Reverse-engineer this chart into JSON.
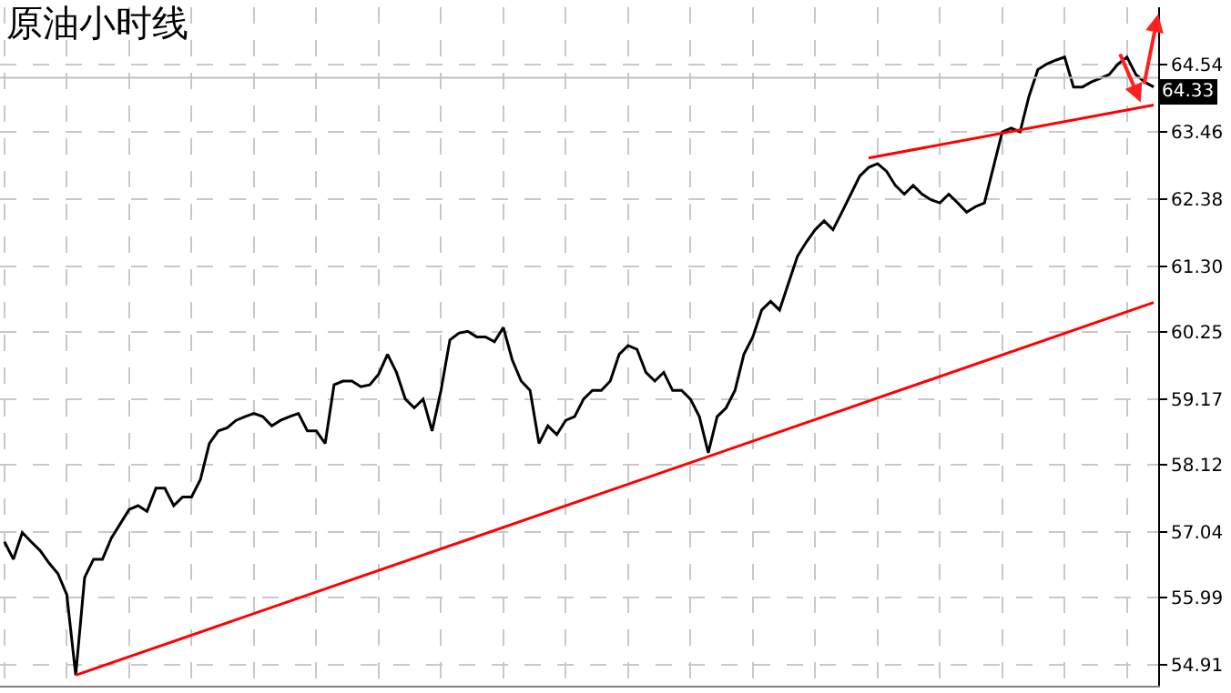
{
  "chart_data": {
    "type": "line",
    "title": "原油小时线",
    "categories": [
      null,
      null,
      null,
      null,
      null,
      null,
      null,
      null,
      null,
      null,
      null,
      null,
      null,
      null,
      null,
      null,
      null,
      null,
      null,
      null,
      null,
      null,
      null,
      null,
      null,
      null,
      null,
      null,
      null,
      null,
      null,
      null,
      null,
      null,
      null,
      null,
      null,
      null,
      null,
      null,
      null,
      null,
      null,
      null,
      null,
      null,
      null,
      null,
      null,
      null,
      null,
      null,
      null,
      null,
      null,
      null,
      null,
      null,
      null,
      null,
      null,
      null,
      null,
      null,
      null,
      null,
      null,
      null,
      null,
      null,
      null,
      null,
      null,
      null,
      null,
      null,
      null,
      null,
      null,
      null,
      null,
      null,
      null,
      null,
      null,
      null,
      null,
      null,
      null,
      null,
      null,
      null,
      null,
      null,
      null,
      null,
      null,
      null,
      null,
      null,
      null,
      null,
      null,
      null,
      null,
      null,
      null,
      null,
      null,
      null,
      null,
      null,
      null,
      null,
      null,
      null,
      null,
      null,
      null,
      null,
      null,
      null,
      null,
      null,
      null,
      null,
      null,
      null,
      null,
      null
    ],
    "series": [
      {
        "color": "#000000",
        "values": [
          56.88,
          56.6,
          57.03,
          56.88,
          56.74,
          56.54,
          56.37,
          56.03,
          54.74,
          56.31,
          56.6,
          56.6,
          56.94,
          57.17,
          57.4,
          57.46,
          57.37,
          57.74,
          57.74,
          57.46,
          57.6,
          57.6,
          57.88,
          58.46,
          58.66,
          58.71,
          58.83,
          58.89,
          58.94,
          58.89,
          58.74,
          58.83,
          58.89,
          58.94,
          58.66,
          58.66,
          58.46,
          59.4,
          59.46,
          59.46,
          59.37,
          59.4,
          59.57,
          59.89,
          59.6,
          59.17,
          59.03,
          59.17,
          58.66,
          59.31,
          60.12,
          60.23,
          60.26,
          60.17,
          60.17,
          60.09,
          60.32,
          59.8,
          59.46,
          59.31,
          58.46,
          58.74,
          58.6,
          58.83,
          58.89,
          59.17,
          59.31,
          59.31,
          59.46,
          59.89,
          60.03,
          59.97,
          59.6,
          59.46,
          59.6,
          59.31,
          59.31,
          59.17,
          58.89,
          58.31,
          58.89,
          59.03,
          59.31,
          59.89,
          60.17,
          60.6,
          60.74,
          60.6,
          61.03,
          61.46,
          61.69,
          61.89,
          62.03,
          61.89,
          62.17,
          62.46,
          62.75,
          62.89,
          62.95,
          62.83,
          62.6,
          62.46,
          62.6,
          62.46,
          62.37,
          62.32,
          62.46,
          62.32,
          62.17,
          62.26,
          62.32,
          62.89,
          63.46,
          63.52,
          63.46,
          64.03,
          64.46,
          64.55,
          64.61,
          64.66,
          64.18,
          64.18,
          64.26,
          64.32,
          64.38,
          64.55,
          64.66,
          64.38,
          64.26,
          64.18
        ]
      },
      {
        "color": "#ff0000",
        "values": [
          null,
          null,
          null,
          null,
          null,
          null,
          null,
          null,
          54.74,
          null,
          null,
          null,
          null,
          null,
          null,
          null,
          null,
          null,
          null,
          null,
          null,
          null,
          null,
          null,
          null,
          null,
          null,
          null,
          null,
          null,
          null,
          null,
          null,
          null,
          null,
          null,
          null,
          null,
          null,
          null,
          null,
          null,
          null,
          null,
          null,
          null,
          null,
          null,
          null,
          null,
          null,
          null,
          null,
          null,
          null,
          null,
          null,
          null,
          null,
          null,
          null,
          null,
          null,
          null,
          null,
          null,
          null,
          null,
          null,
          null,
          null,
          null,
          null,
          null,
          null,
          null,
          null,
          null,
          null,
          null,
          null,
          null,
          null,
          null,
          null,
          null,
          null,
          null,
          null,
          null,
          null,
          null,
          null,
          null,
          null,
          null,
          null,
          null,
          null,
          null,
          null,
          null,
          null,
          null,
          null,
          null,
          null,
          null,
          null,
          null,
          null,
          null,
          null,
          null,
          null,
          null,
          null,
          null,
          null,
          null,
          null,
          null,
          null,
          null,
          null,
          null,
          null,
          null,
          null,
          60.72
        ]
      },
      {
        "color": "#ff0000",
        "values": [
          null,
          null,
          null,
          null,
          null,
          null,
          null,
          null,
          null,
          null,
          null,
          null,
          null,
          null,
          null,
          null,
          null,
          null,
          null,
          null,
          null,
          null,
          null,
          null,
          null,
          null,
          null,
          null,
          null,
          null,
          null,
          null,
          null,
          null,
          null,
          null,
          null,
          null,
          null,
          null,
          null,
          null,
          null,
          null,
          null,
          null,
          null,
          null,
          null,
          null,
          null,
          null,
          null,
          null,
          null,
          null,
          null,
          null,
          null,
          null,
          null,
          null,
          null,
          null,
          null,
          null,
          null,
          null,
          null,
          null,
          null,
          null,
          null,
          null,
          null,
          null,
          null,
          null,
          null,
          null,
          null,
          null,
          null,
          null,
          null,
          null,
          null,
          null,
          null,
          null,
          null,
          null,
          null,
          null,
          null,
          null,
          null,
          63.04,
          null,
          null,
          null,
          null,
          null,
          null,
          null,
          null,
          null,
          null,
          null,
          null,
          null,
          null,
          null,
          null,
          null,
          null,
          null,
          null,
          null,
          null,
          null,
          null,
          null,
          null,
          null,
          null,
          null,
          null,
          null,
          63.89
        ]
      }
    ],
    "ylim": [
      54.57,
      65.46
    ],
    "yticks": [
      54.91,
      55.99,
      57.04,
      58.12,
      59.17,
      60.25,
      {
        "value": 61.3,
        "label": "61.30"
      },
      62.38,
      63.46,
      64.54
    ],
    "ref_lines": [
      {
        "axis": "y",
        "value": 64.33,
        "label": "64.33",
        "color": "#c0c0c0"
      }
    ],
    "grid": true,
    "tick_labels": "y",
    "line_style": "solid",
    "marker": "none"
  }
}
